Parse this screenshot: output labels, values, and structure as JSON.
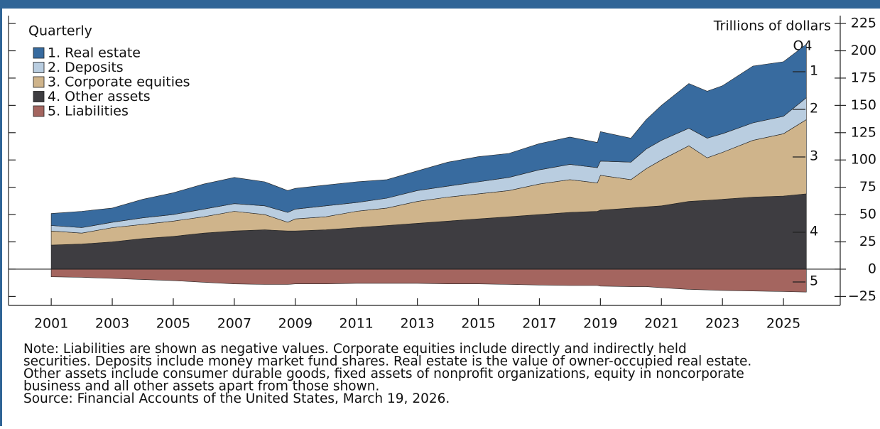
{
  "chart_data": {
    "type": "stacked_area",
    "legend_title": "Quarterly",
    "y_label": "Trillions of dollars",
    "annotation": "Q4",
    "end_labels": [
      "1",
      "2",
      "3",
      "4",
      "5"
    ],
    "x": [
      2001,
      2002,
      2003,
      2004,
      2005,
      2006,
      2007,
      2008,
      2008.75,
      2009,
      2010,
      2011,
      2012,
      2013,
      2014,
      2015,
      2016,
      2017,
      2018,
      2018.9,
      2019,
      2020,
      2020.5,
      2021,
      2021.9,
      2022.5,
      2023,
      2024,
      2025,
      2025.75
    ],
    "series": [
      {
        "name": "1. Real estate",
        "color": "#386b9f",
        "stack": "pos",
        "order": 3,
        "values": [
          11,
          15,
          13,
          17,
          20,
          23,
          24,
          22,
          20,
          19,
          19,
          19,
          17,
          18,
          22,
          23,
          22,
          24,
          25,
          23,
          27,
          22,
          27,
          32,
          41,
          43,
          44,
          52,
          50,
          49
        ]
      },
      {
        "name": "2. Deposits",
        "color": "#b9cde0",
        "stack": "pos",
        "order": 2,
        "values": [
          5,
          5,
          5,
          6,
          6,
          7,
          7,
          8,
          9,
          9,
          10,
          8,
          9,
          10,
          10,
          11,
          12,
          13,
          14,
          14,
          13,
          16,
          18,
          18,
          16,
          18,
          17,
          16,
          16,
          20
        ]
      },
      {
        "name": "3. Corporate equities",
        "color": "#cfb48b",
        "stack": "pos",
        "order": 1,
        "values": [
          13,
          10,
          13,
          13,
          14,
          15,
          18,
          14,
          8,
          11,
          12,
          15,
          16,
          20,
          22,
          23,
          24,
          28,
          30,
          26,
          32,
          26,
          35,
          42,
          51,
          39,
          43,
          52,
          57,
          68
        ]
      },
      {
        "name": "4. Other assets",
        "color": "#3e3d41",
        "stack": "pos",
        "order": 0,
        "values": [
          22,
          23,
          25,
          28,
          30,
          33,
          35,
          36,
          35,
          35,
          36,
          38,
          40,
          42,
          44,
          46,
          48,
          50,
          52,
          53,
          54,
          56,
          57,
          58,
          62,
          63,
          64,
          66,
          67,
          69
        ]
      },
      {
        "name": "5. Liabilities",
        "color": "#a4655f",
        "stack": "neg",
        "order": 0,
        "values": [
          -7,
          -7.5,
          -8.5,
          -9.5,
          -10.5,
          -12,
          -13.5,
          -14,
          -14,
          -13.5,
          -13.5,
          -13,
          -13,
          -13,
          -13.5,
          -13.5,
          -14,
          -14.5,
          -15,
          -15,
          -15.5,
          -16,
          -16,
          -17,
          -18.5,
          -19,
          -19.5,
          -20,
          -20.5,
          -21
        ]
      }
    ],
    "xlim": [
      1999.6,
      2026.86
    ],
    "xticks": [
      2001,
      2003,
      2005,
      2007,
      2009,
      2011,
      2013,
      2015,
      2017,
      2019,
      2021,
      2023,
      2025
    ],
    "ylim": [
      -33.2,
      232.2
    ],
    "yticks": [
      {
        "value": -25,
        "label": "−25"
      },
      0,
      25,
      50,
      75,
      100,
      125,
      150,
      175,
      200,
      225
    ],
    "note": [
      "Note: Liabilities are shown as negative values. Corporate equities include directly and indirectly held",
      "securities. Deposits include money market fund shares. Real estate is the value of owner-occupied real estate.",
      "Other assets include consumer durable goods, fixed assets of nonprofit organizations, equity in noncorporate",
      "business and all other assets apart from those shown."
    ],
    "source": "Source: Financial Accounts of the United States, March 19, 2026."
  }
}
